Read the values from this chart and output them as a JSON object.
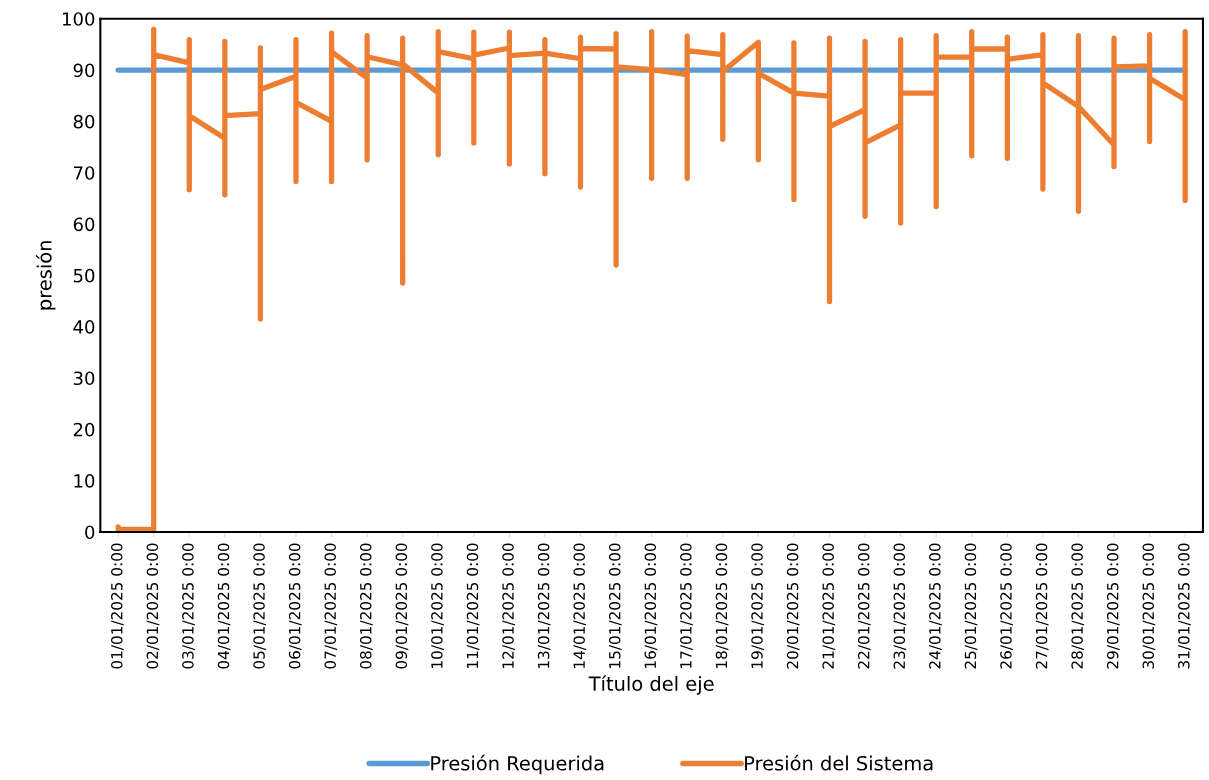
{
  "chart_data": {
    "type": "line",
    "xlabel": "Título del eje",
    "ylabel": "presión",
    "ylim": [
      0,
      100
    ],
    "yticks": [
      0,
      10,
      20,
      30,
      40,
      50,
      60,
      70,
      80,
      90,
      100
    ],
    "xlim": [
      "2024-12-31T12:00",
      "2025-01-31T12:00"
    ],
    "xticks": [
      {
        "value": "2025-01-01",
        "label": "01/01/2025 0:00"
      },
      {
        "value": "2025-01-02",
        "label": "02/01/2025 0:00"
      },
      {
        "value": "2025-01-03",
        "label": "03/01/2025 0:00"
      },
      {
        "value": "2025-01-04",
        "label": "04/01/2025 0:00"
      },
      {
        "value": "2025-01-05",
        "label": "05/01/2025 0:00"
      },
      {
        "value": "2025-01-06",
        "label": "06/01/2025 0:00"
      },
      {
        "value": "2025-01-07",
        "label": "07/01/2025 0:00"
      },
      {
        "value": "2025-01-08",
        "label": "08/01/2025 0:00"
      },
      {
        "value": "2025-01-09",
        "label": "09/01/2025 0:00"
      },
      {
        "value": "2025-01-10",
        "label": "10/01/2025 0:00"
      },
      {
        "value": "2025-01-11",
        "label": "11/01/2025 0:00"
      },
      {
        "value": "2025-01-12",
        "label": "12/01/2025 0:00"
      },
      {
        "value": "2025-01-13",
        "label": "13/01/2025 0:00"
      },
      {
        "value": "2025-01-14",
        "label": "14/01/2025 0:00"
      },
      {
        "value": "2025-01-15",
        "label": "15/01/2025 0:00"
      },
      {
        "value": "2025-01-16",
        "label": "16/01/2025 0:00"
      },
      {
        "value": "2025-01-17",
        "label": "17/01/2025 0:00"
      },
      {
        "value": "2025-01-18",
        "label": "18/01/2025 0:00"
      },
      {
        "value": "2025-01-19",
        "label": "19/01/2025 0:00"
      },
      {
        "value": "2025-01-20",
        "label": "20/01/2025 0:00"
      },
      {
        "value": "2025-01-21",
        "label": "21/01/2025 0:00"
      },
      {
        "value": "2025-01-22",
        "label": "22/01/2025 0:00"
      },
      {
        "value": "2025-01-23",
        "label": "23/01/2025 0:00"
      },
      {
        "value": "2025-01-24",
        "label": "24/01/2025 0:00"
      },
      {
        "value": "2025-01-25",
        "label": "25/01/2025 0:00"
      },
      {
        "value": "2025-01-26",
        "label": "26/01/2025 0:00"
      },
      {
        "value": "2025-01-27",
        "label": "27/01/2025 0:00"
      },
      {
        "value": "2025-01-28",
        "label": "28/01/2025 0:00"
      },
      {
        "value": "2025-01-29",
        "label": "29/01/2025 0:00"
      },
      {
        "value": "2025-01-30",
        "label": "30/01/2025 0:00"
      },
      {
        "value": "2025-01-31",
        "label": "31/01/2025 0:00"
      }
    ],
    "grid": false,
    "legend": "bottom",
    "marker": "none",
    "line_style": "solid",
    "series": [
      {
        "name": "Presión Requerida",
        "color": "#5b9bd5",
        "x": [
          "2025-01-01",
          "2025-01-31"
        ],
        "values": [
          90,
          90
        ]
      },
      {
        "name": "Presión del Sistema",
        "color": "#ed7d31",
        "x": [
          "2025-01-01",
          "2025-01-01",
          "2025-01-02",
          "2025-01-02",
          "2025-01-02",
          "2025-01-03",
          "2025-01-03",
          "2025-01-03",
          "2025-01-03",
          "2025-01-04",
          "2025-01-04",
          "2025-01-04",
          "2025-01-04",
          "2025-01-05",
          "2025-01-05",
          "2025-01-05",
          "2025-01-05",
          "2025-01-06",
          "2025-01-06",
          "2025-01-06",
          "2025-01-06",
          "2025-01-07",
          "2025-01-07",
          "2025-01-07",
          "2025-01-07",
          "2025-01-08",
          "2025-01-08",
          "2025-01-08",
          "2025-01-08",
          "2025-01-09",
          "2025-01-09",
          "2025-01-09",
          "2025-01-09",
          "2025-01-10",
          "2025-01-10",
          "2025-01-10",
          "2025-01-10",
          "2025-01-11",
          "2025-01-11",
          "2025-01-11",
          "2025-01-11",
          "2025-01-12",
          "2025-01-12",
          "2025-01-12",
          "2025-01-12",
          "2025-01-13",
          "2025-01-13",
          "2025-01-13",
          "2025-01-13",
          "2025-01-14",
          "2025-01-14",
          "2025-01-14",
          "2025-01-14",
          "2025-01-15",
          "2025-01-15",
          "2025-01-15",
          "2025-01-15",
          "2025-01-16",
          "2025-01-16",
          "2025-01-16",
          "2025-01-16",
          "2025-01-17",
          "2025-01-17",
          "2025-01-17",
          "2025-01-17",
          "2025-01-18",
          "2025-01-18",
          "2025-01-18",
          "2025-01-18",
          "2025-01-19",
          "2025-01-19",
          "2025-01-19",
          "2025-01-19",
          "2025-01-20",
          "2025-01-20",
          "2025-01-20",
          "2025-01-20",
          "2025-01-21",
          "2025-01-21",
          "2025-01-21",
          "2025-01-21",
          "2025-01-22",
          "2025-01-22",
          "2025-01-22",
          "2025-01-22",
          "2025-01-23",
          "2025-01-23",
          "2025-01-23",
          "2025-01-23",
          "2025-01-24",
          "2025-01-24",
          "2025-01-24",
          "2025-01-24",
          "2025-01-25",
          "2025-01-25",
          "2025-01-25",
          "2025-01-25",
          "2025-01-26",
          "2025-01-26",
          "2025-01-26",
          "2025-01-26",
          "2025-01-27",
          "2025-01-27",
          "2025-01-27",
          "2025-01-27",
          "2025-01-28",
          "2025-01-28",
          "2025-01-28",
          "2025-01-28",
          "2025-01-29",
          "2025-01-29",
          "2025-01-29",
          "2025-01-29",
          "2025-01-30",
          "2025-01-30",
          "2025-01-30",
          "2025-01-30",
          "2025-01-31",
          "2025-01-31",
          "2025-01-31",
          "2025-01-31"
        ],
        "values": [
          1,
          0.5,
          0.5,
          97.9,
          93.0,
          91.4,
          66.7,
          95.9,
          81.1,
          76.7,
          65.7,
          95.6,
          81.1,
          81.5,
          41.5,
          94.3,
          86.2,
          88.8,
          68.3,
          95.9,
          83.7,
          80.0,
          68.3,
          97.2,
          93.6,
          88.4,
          72.5,
          96.7,
          92.6,
          91.0,
          48.5,
          96.2,
          91.2,
          85.5,
          73.5,
          97.5,
          93.6,
          92.2,
          75.8,
          97.4,
          92.9,
          94.3,
          71.7,
          97.4,
          92.8,
          93.3,
          69.8,
          95.9,
          93.3,
          92.2,
          67.2,
          96.4,
          94.2,
          94.1,
          52.0,
          97.1,
          90.6,
          90.1,
          68.9,
          97.5,
          90.1,
          89.1,
          68.9,
          96.6,
          93.8,
          93.0,
          76.5,
          96.9,
          89.7,
          95.4,
          72.5,
          95.4,
          89.4,
          85.5,
          64.8,
          95.3,
          85.5,
          84.9,
          44.9,
          96.2,
          79.0,
          82.3,
          61.5,
          95.6,
          75.8,
          79.3,
          60.2,
          95.9,
          85.5,
          85.5,
          63.4,
          96.7,
          92.5,
          92.5,
          73.3,
          97.5,
          94.1,
          94.1,
          72.8,
          96.4,
          92.1,
          93.0,
          66.8,
          96.9,
          87.5,
          82.9,
          62.5,
          96.7,
          82.9,
          75.4,
          71.2,
          96.2,
          90.6,
          90.8,
          76.1,
          96.9,
          88.4,
          84.2,
          64.6,
          97.5,
          84.2
        ]
      }
    ]
  }
}
